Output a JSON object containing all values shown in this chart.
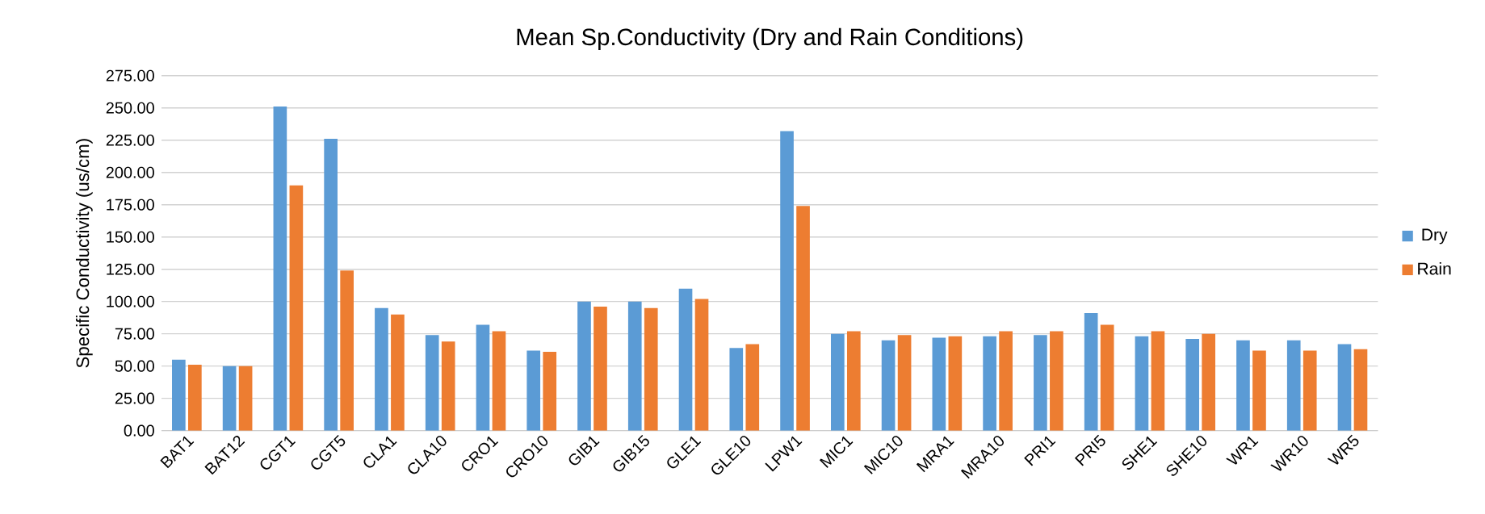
{
  "chart_data": {
    "type": "bar",
    "title": "Mean Sp.Conductivity (Dry and Rain Conditions)",
    "ylabel": "Specific Conductivity (us/cm)",
    "categories": [
      "BAT1",
      "BAT12",
      "CGT1",
      "CGT5",
      "CLA1",
      "CLA10",
      "CRO1",
      "CRO10",
      "GIB1",
      "GIB15",
      "GLE1",
      "GLE10",
      "LPW1",
      "MIC1",
      "MIC10",
      "MRA1",
      "MRA10",
      "PRI1",
      "PRI5",
      "SHE1",
      "SHE10",
      "WR1",
      "WR10",
      "WR5"
    ],
    "series": [
      {
        "name": "Dry",
        "color": "#5b9bd5",
        "values": [
          55,
          50,
          251,
          226,
          95,
          74,
          82,
          62,
          100,
          100,
          110,
          64,
          232,
          75,
          70,
          72,
          73,
          74,
          91,
          73,
          71,
          70,
          70,
          67
        ]
      },
      {
        "name": "Rain",
        "color": "#ed7d31",
        "values": [
          51,
          50,
          190,
          124,
          90,
          69,
          77,
          61,
          96,
          95,
          102,
          67,
          174,
          77,
          74,
          73,
          77,
          77,
          82,
          77,
          75,
          62,
          62,
          63
        ]
      }
    ],
    "ylim": [
      0,
      275
    ],
    "yticks": [
      {
        "value": 0,
        "label": "0.00"
      },
      {
        "value": 25,
        "label": "25.00"
      },
      {
        "value": 50,
        "label": "50.00"
      },
      {
        "value": 75,
        "label": "75.00"
      },
      {
        "value": 100,
        "label": "100.00"
      },
      {
        "value": 125,
        "label": "125.00"
      },
      {
        "value": 150,
        "label": "150.00"
      },
      {
        "value": 175,
        "label": "175.00"
      },
      {
        "value": 200,
        "label": "200.00"
      },
      {
        "value": 225,
        "label": "225.00"
      },
      {
        "value": 250,
        "label": "250.00"
      },
      {
        "value": 275,
        "label": "275.00"
      }
    ],
    "grid": "y",
    "legend": "right"
  }
}
